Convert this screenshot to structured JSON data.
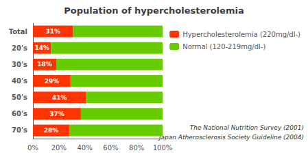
{
  "chart_data": {
    "type": "bar",
    "orientation": "horizontal",
    "stacked": true,
    "title": "Population of hypercholesterolemia",
    "categories": [
      "Total",
      "20's",
      "30's",
      "40's",
      "50's",
      "60's",
      "70's"
    ],
    "series": [
      {
        "name": "Hypercholesterolemia (220mg/dl-)",
        "color": "#ff3300",
        "values": [
          31,
          14,
          18,
          29,
          41,
          37,
          28
        ],
        "value_labels": [
          "31%",
          "14%",
          "18%",
          "29%",
          "41%",
          "37%",
          "28%"
        ]
      },
      {
        "name": "Normal (120-219mg/dl-)",
        "color": "#66cc00",
        "values": [
          69,
          86,
          82,
          71,
          59,
          63,
          72
        ]
      }
    ],
    "xlim": [
      0,
      100
    ],
    "xticks": [
      {
        "value": 0,
        "label": "0%"
      },
      {
        "value": 20,
        "label": "20%"
      },
      {
        "value": 40,
        "label": "40%"
      },
      {
        "value": 60,
        "label": "60%"
      },
      {
        "value": 80,
        "label": "80%"
      },
      {
        "value": 100,
        "label": "100%"
      }
    ],
    "grid": false,
    "legend": "right",
    "annotations": [
      "The National Nutrition Survey (2001)",
      "Japan Atherosclerosis Society Guideline (2004)"
    ]
  }
}
